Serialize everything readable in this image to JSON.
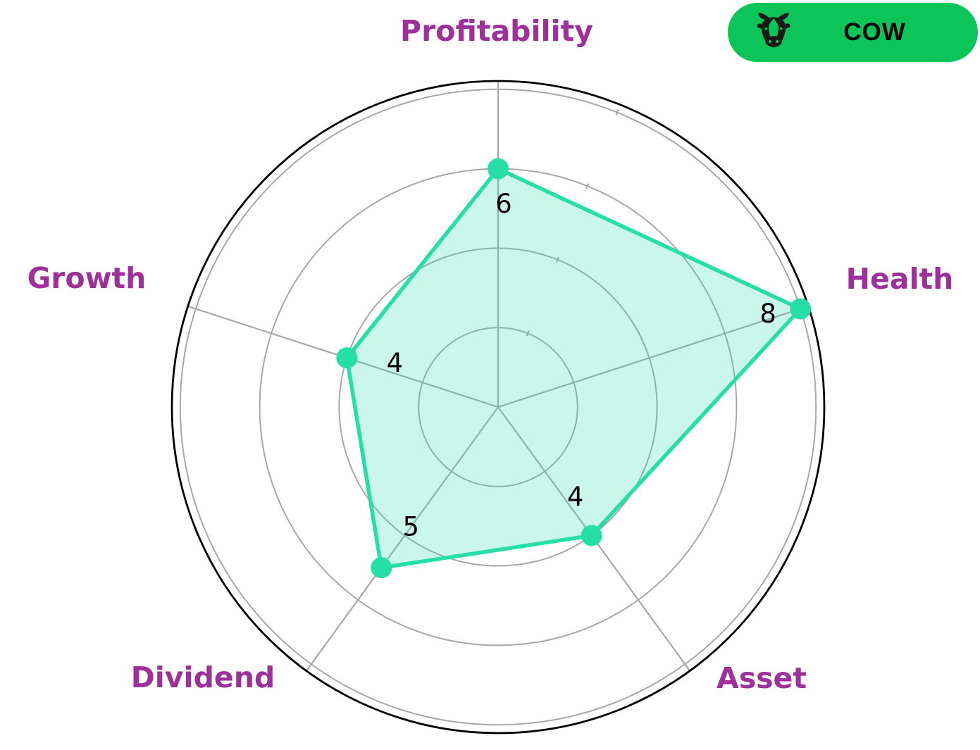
{
  "badge": {
    "label": "COW",
    "icon": "cow-icon",
    "background_color": "#0bc558",
    "text_color": "#000000",
    "icon_color": "#1a1a1a"
  },
  "chart_data": {
    "type": "radar",
    "categories": [
      "Profitability",
      "Health",
      "Asset",
      "Dividend",
      "Growth"
    ],
    "series": [
      {
        "name": "COW",
        "values": [
          6,
          8,
          4,
          5,
          4
        ]
      }
    ],
    "angles_deg": [
      90,
      18,
      -54,
      -126,
      162
    ],
    "r_gridlines": [
      2,
      4,
      6,
      8
    ],
    "r_max": 8.2,
    "grid_on": true,
    "legend_position": "top-right",
    "colors": {
      "series_line": "#25dfa6",
      "series_fill": "rgba(37,223,166,0.24)",
      "grid": "#aaa6aa",
      "outer_circle": "#000000",
      "category_label": "#9e309c",
      "value_label": "#000000",
      "background": "#ffffff"
    }
  }
}
